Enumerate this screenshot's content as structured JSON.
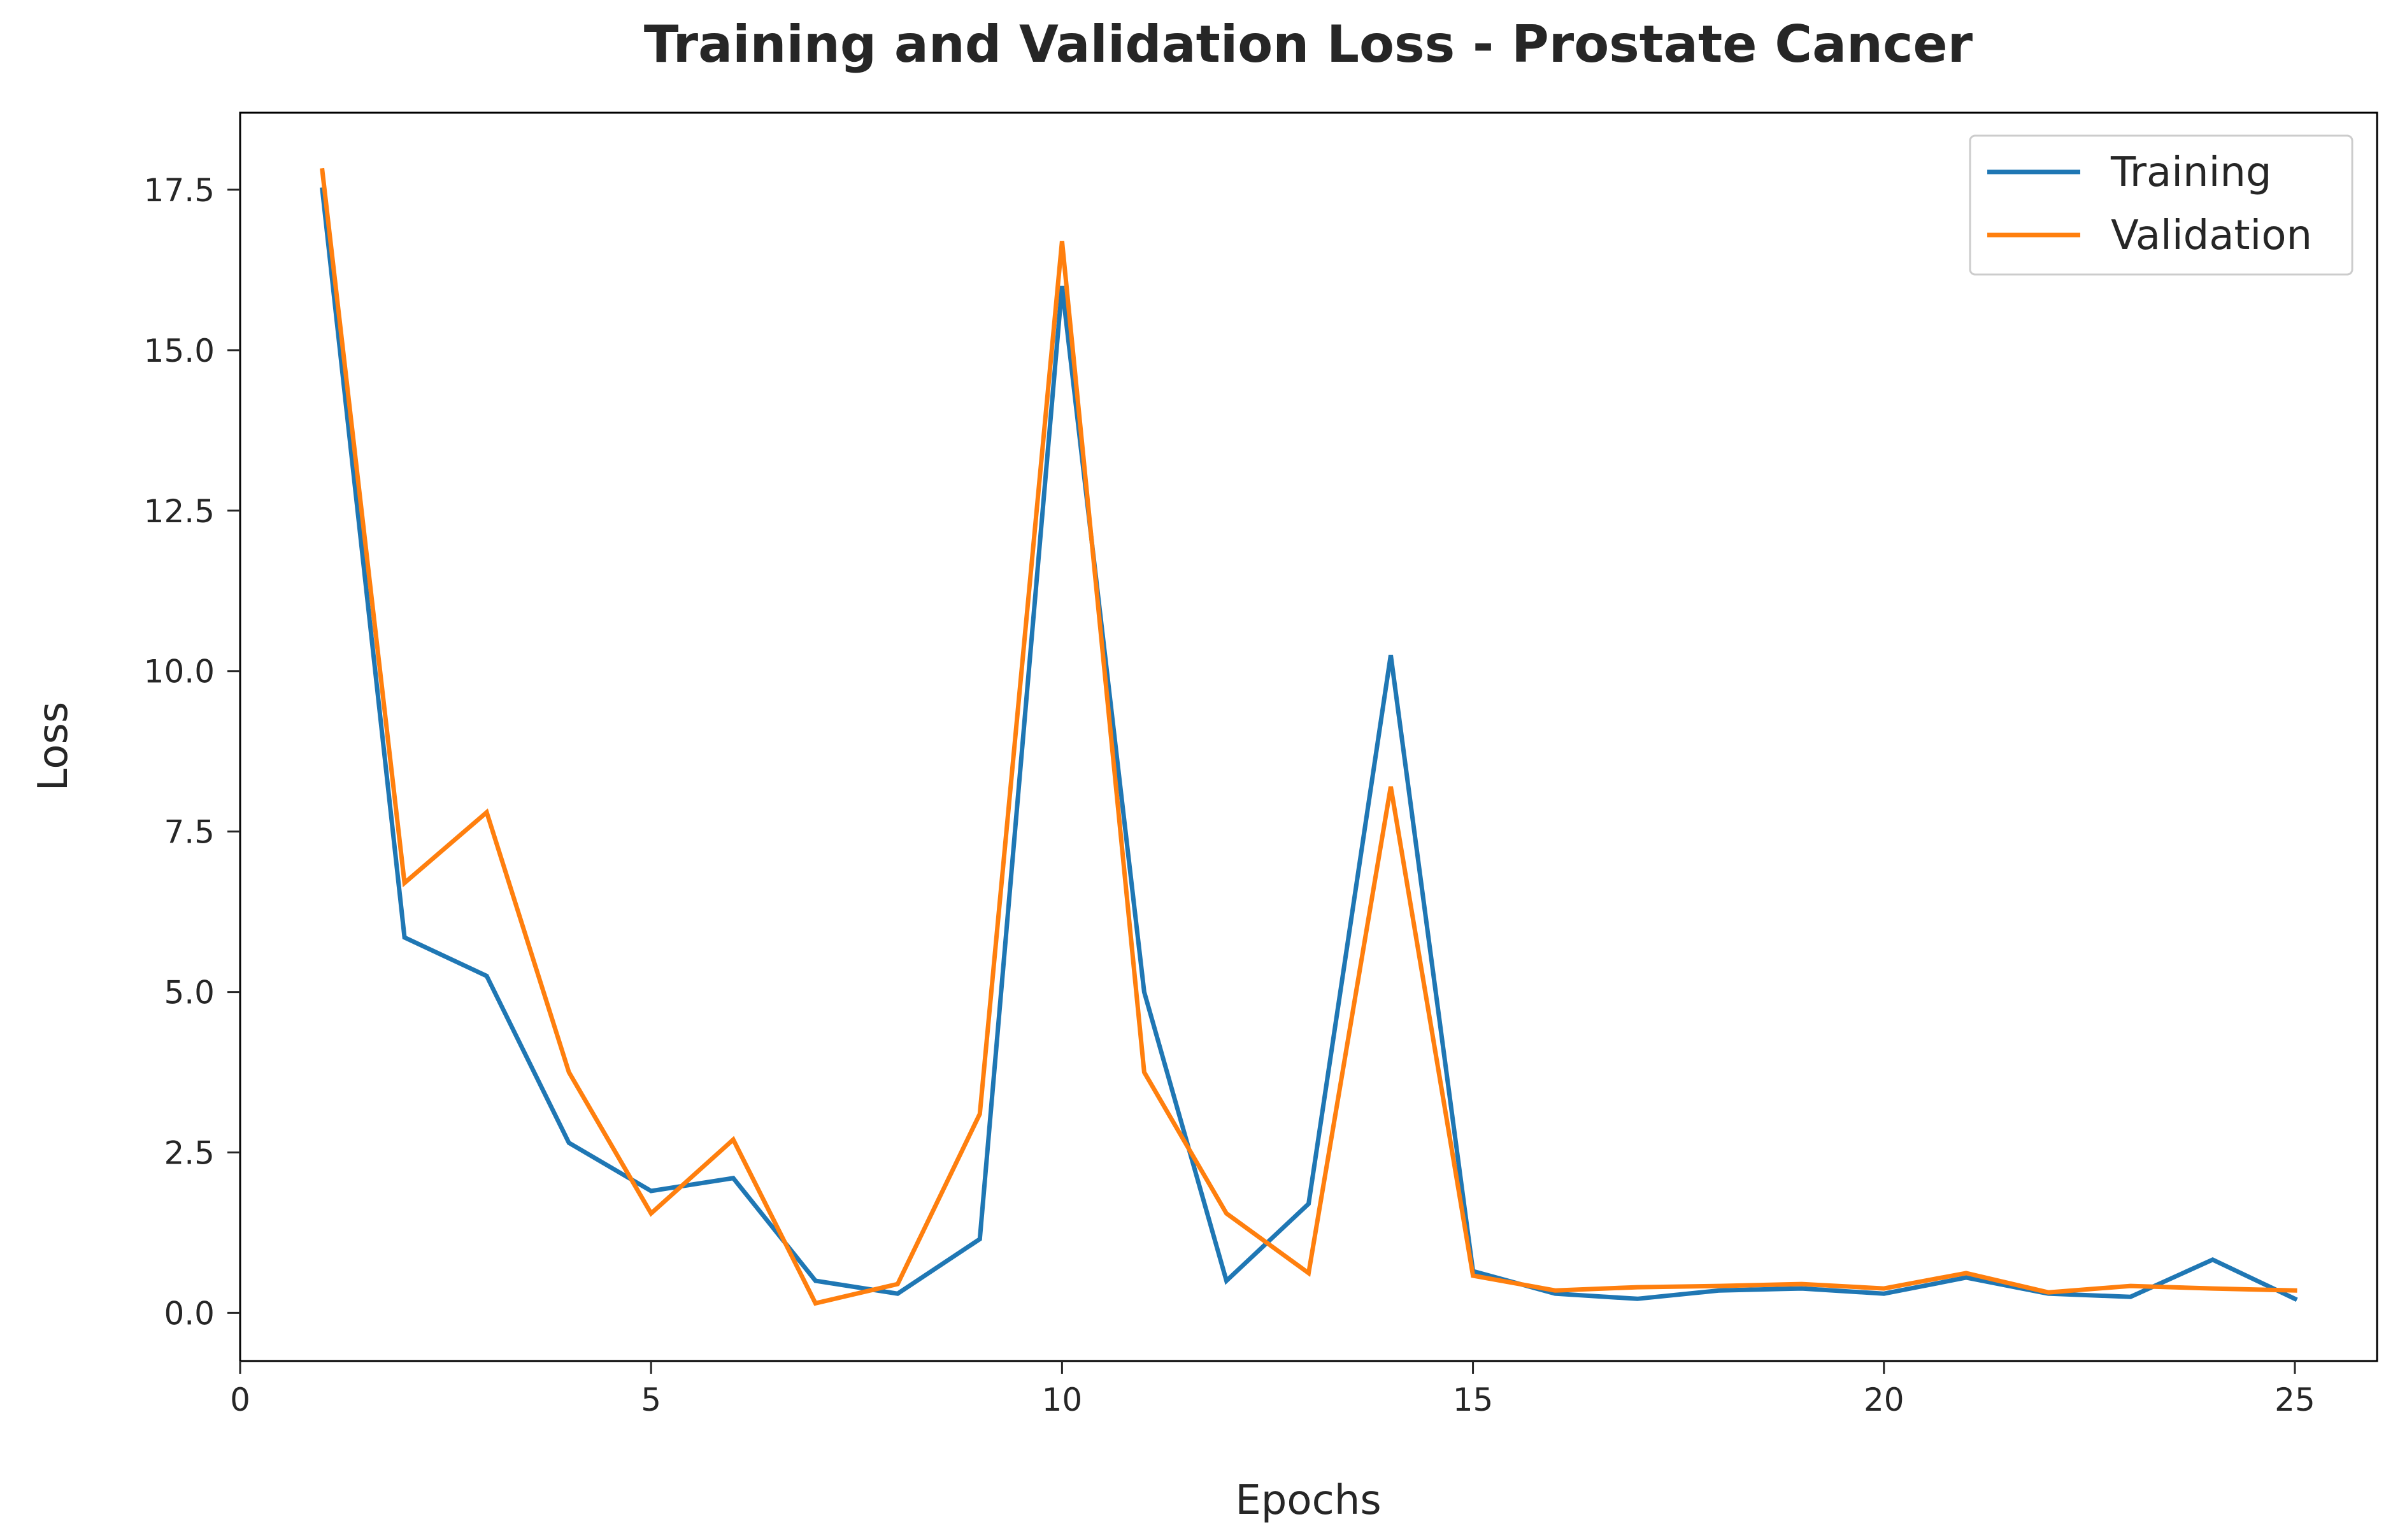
{
  "chart_data": {
    "type": "line",
    "title": "Training and Validation Loss - Prostate Cancer",
    "xlabel": "Epochs",
    "ylabel": "Loss",
    "xlim": [
      0,
      26
    ],
    "ylim": [
      -0.75,
      18.7
    ],
    "x_ticks": [
      0,
      5,
      10,
      15,
      20,
      25
    ],
    "x_tick_labels": [
      "0",
      "5",
      "10",
      "15",
      "20",
      "25"
    ],
    "y_ticks": [
      0.0,
      2.5,
      5.0,
      7.5,
      10.0,
      12.5,
      15.0,
      17.5
    ],
    "y_tick_labels": [
      "0.0",
      "2.5",
      "5.0",
      "7.5",
      "10.0",
      "12.5",
      "15.0",
      "17.5"
    ],
    "grid": false,
    "legend_position": "top-right",
    "x": [
      1,
      2,
      3,
      4,
      5,
      6,
      7,
      8,
      9,
      10,
      11,
      12,
      13,
      14,
      15,
      16,
      17,
      18,
      19,
      20,
      21,
      22,
      23,
      24,
      25
    ],
    "series": [
      {
        "name": "Training",
        "color": "#1f77b4",
        "values": [
          17.5,
          5.85,
          5.25,
          2.65,
          1.9,
          2.1,
          0.5,
          0.3,
          1.15,
          16.0,
          5.0,
          0.5,
          1.7,
          10.25,
          0.65,
          0.3,
          0.22,
          0.35,
          0.38,
          0.3,
          0.55,
          0.3,
          0.25,
          0.83,
          0.22
        ]
      },
      {
        "name": "Validation",
        "color": "#ff7f0e",
        "values": [
          17.8,
          6.7,
          7.8,
          3.75,
          1.55,
          2.7,
          0.15,
          0.45,
          3.1,
          16.7,
          3.75,
          1.55,
          0.62,
          8.2,
          0.58,
          0.35,
          0.4,
          0.42,
          0.45,
          0.38,
          0.62,
          0.32,
          0.42,
          0.38,
          0.35
        ]
      }
    ]
  }
}
